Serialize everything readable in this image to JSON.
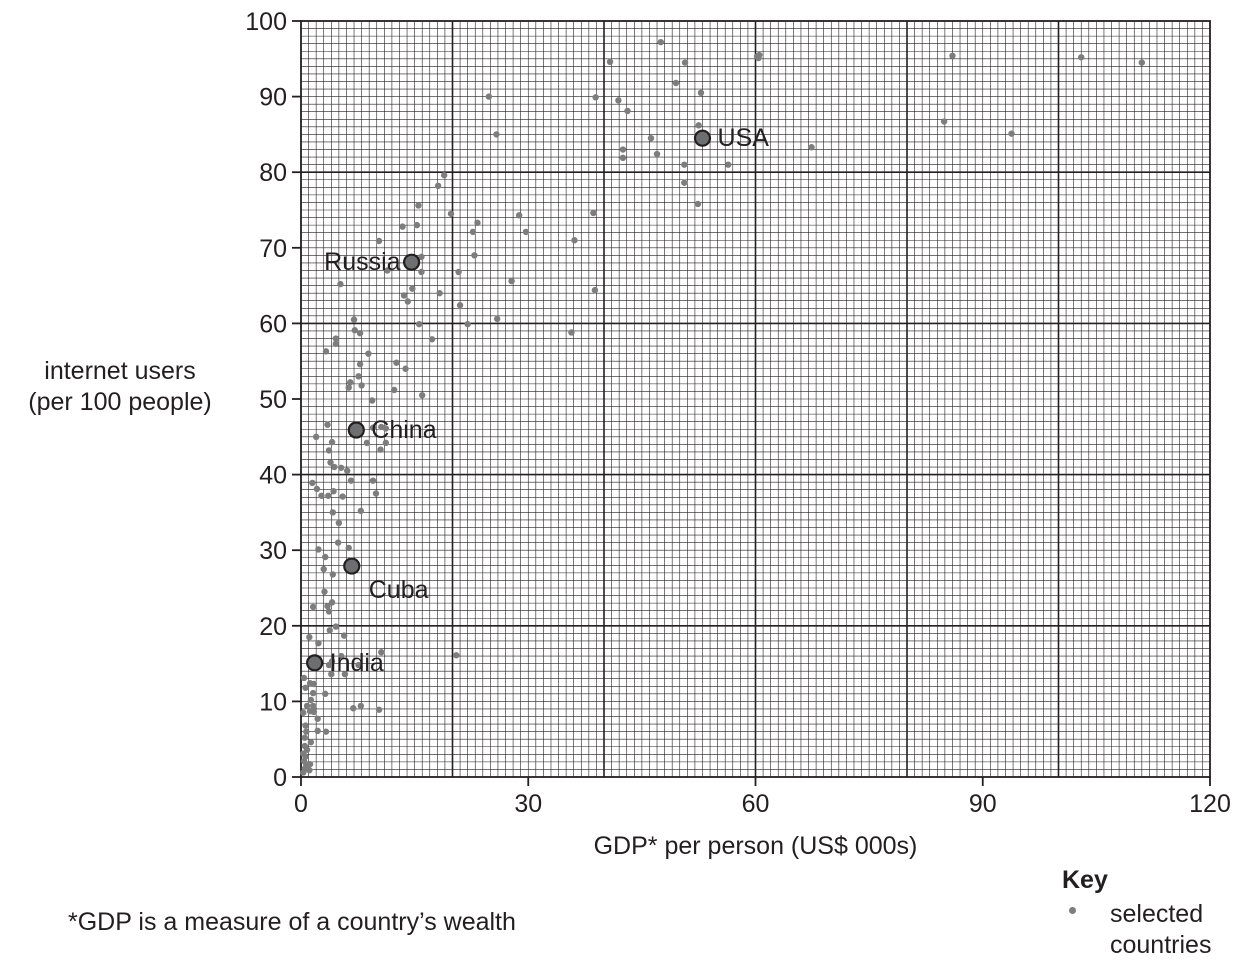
{
  "chart_data": {
    "type": "scatter",
    "xlabel": "GDP* per person (US$ 000s)",
    "ylabel_lines": [
      "internet users",
      "(per 100 people)"
    ],
    "xlim": [
      0,
      120
    ],
    "ylim": [
      0,
      100
    ],
    "xticks": [
      0,
      30,
      60,
      90,
      120
    ],
    "yticks": [
      0,
      10,
      20,
      30,
      40,
      50,
      60,
      70,
      80,
      90,
      100
    ],
    "grid": true,
    "legend_position": "bottom-right",
    "colors": {
      "point": "#7d7d7e",
      "highlight_fill": "#6d6e70",
      "highlight_stroke": "#231f20",
      "grid": "#231f20",
      "text": "#231f20"
    },
    "series": [
      {
        "name": "selected countries",
        "points": [
          [
            47.5,
            97.2
          ],
          [
            40.8,
            94.6
          ],
          [
            50.7,
            94.5
          ],
          [
            60.2,
            95.3
          ],
          [
            60.4,
            95.1
          ],
          [
            60.5,
            95.5
          ],
          [
            86,
            95.4
          ],
          [
            103,
            95.2
          ],
          [
            111,
            94.5
          ],
          [
            49.5,
            91.8
          ],
          [
            52.8,
            90.5
          ],
          [
            38.9,
            89.9
          ],
          [
            24.8,
            90
          ],
          [
            41.9,
            89.5
          ],
          [
            43.1,
            88.1
          ],
          [
            84.9,
            86.7
          ],
          [
            52.5,
            86.2
          ],
          [
            25.8,
            85
          ],
          [
            46.2,
            84.5
          ],
          [
            93.8,
            85.1
          ],
          [
            67.4,
            83.3
          ],
          [
            42.5,
            83
          ],
          [
            47,
            82.4
          ],
          [
            42.5,
            81.9
          ],
          [
            50.6,
            81
          ],
          [
            56.4,
            81
          ],
          [
            50.6,
            78.6
          ],
          [
            18.9,
            79.6
          ],
          [
            18.1,
            78.2
          ],
          [
            52.4,
            75.8
          ],
          [
            15.5,
            75.6
          ],
          [
            38.6,
            74.6
          ],
          [
            19.8,
            74.5
          ],
          [
            28.8,
            74.3
          ],
          [
            23.3,
            73.3
          ],
          [
            13.4,
            72.8
          ],
          [
            15.3,
            73
          ],
          [
            22.7,
            72.1
          ],
          [
            29.7,
            72.1
          ],
          [
            36.1,
            71
          ],
          [
            10.3,
            70.9
          ],
          [
            22.9,
            69
          ],
          [
            15.9,
            68.8
          ],
          [
            11.4,
            67
          ],
          [
            20.8,
            66.8
          ],
          [
            15.9,
            66.8
          ],
          [
            27.8,
            65.6
          ],
          [
            5.2,
            65.2
          ],
          [
            14.7,
            64.6
          ],
          [
            18.3,
            64
          ],
          [
            38.8,
            64.4
          ],
          [
            13.6,
            63.7
          ],
          [
            14.1,
            62.9
          ],
          [
            21,
            62.4
          ],
          [
            7,
            60.5
          ],
          [
            25.9,
            60.6
          ],
          [
            15.6,
            59.9
          ],
          [
            22,
            59.9
          ],
          [
            7.1,
            59.1
          ],
          [
            7.8,
            58.7
          ],
          [
            35.7,
            58.8
          ],
          [
            17.3,
            57.9
          ],
          [
            4.6,
            58
          ],
          [
            4.6,
            57.3
          ],
          [
            3.3,
            56.3
          ],
          [
            12.6,
            54.8
          ],
          [
            8.9,
            56
          ],
          [
            13.8,
            54
          ],
          [
            7.8,
            54.6
          ],
          [
            7.6,
            53
          ],
          [
            6.5,
            52.2
          ],
          [
            6.3,
            51.5
          ],
          [
            8,
            51.8
          ],
          [
            12.3,
            51.2
          ],
          [
            16,
            50.5
          ],
          [
            9.4,
            49.8
          ],
          [
            3.5,
            46.6
          ],
          [
            9.5,
            46.2
          ],
          [
            11.2,
            46.1
          ],
          [
            10.6,
            46.3
          ],
          [
            2,
            45
          ],
          [
            8.7,
            44.2
          ],
          [
            10.5,
            43.3
          ],
          [
            11.2,
            44.2
          ],
          [
            4.1,
            44.3
          ],
          [
            3.7,
            43.2
          ],
          [
            3.9,
            41.6
          ],
          [
            4.4,
            41
          ],
          [
            5.3,
            40.9
          ],
          [
            6.1,
            40.5
          ],
          [
            1.5,
            38.9
          ],
          [
            2.1,
            38.1
          ],
          [
            4.3,
            37.8
          ],
          [
            6.6,
            39.2
          ],
          [
            9.5,
            39.2
          ],
          [
            2.7,
            37.2
          ],
          [
            3.6,
            37.2
          ],
          [
            5.5,
            37.1
          ],
          [
            9.9,
            37.5
          ],
          [
            4.2,
            35
          ],
          [
            7.9,
            35.2
          ],
          [
            5,
            33.6
          ],
          [
            4.9,
            31
          ],
          [
            6.3,
            30.3
          ],
          [
            2.3,
            30.1
          ],
          [
            3.2,
            29.1
          ],
          [
            3,
            27.5
          ],
          [
            4.2,
            26.8
          ],
          [
            3.1,
            24.5
          ],
          [
            4.1,
            23.1
          ],
          [
            3.5,
            22.6
          ],
          [
            1.6,
            22.5
          ],
          [
            3.7,
            21.9
          ],
          [
            4.6,
            19.9
          ],
          [
            3.8,
            19.4
          ],
          [
            5.7,
            18.7
          ],
          [
            1.1,
            18.5
          ],
          [
            2.3,
            17.7
          ],
          [
            20.5,
            16.1
          ],
          [
            5.3,
            16
          ],
          [
            10.6,
            16.5
          ],
          [
            4.1,
            15.3
          ],
          [
            3.7,
            14.8
          ],
          [
            7.6,
            14.8
          ],
          [
            4,
            13.6
          ],
          [
            5.8,
            13.6
          ],
          [
            0.4,
            13.1
          ],
          [
            1.2,
            12.4
          ],
          [
            1.7,
            12.3
          ],
          [
            0.6,
            11.8
          ],
          [
            1.6,
            11.1
          ],
          [
            3.2,
            11
          ],
          [
            1.3,
            10.2
          ],
          [
            1.6,
            9.4
          ],
          [
            0.8,
            9.4
          ],
          [
            1.7,
            8.6
          ],
          [
            1.2,
            8.7
          ],
          [
            0.3,
            8.5
          ],
          [
            6.9,
            9.1
          ],
          [
            7.9,
            9.4
          ],
          [
            10.3,
            8.9
          ],
          [
            2.2,
            7.7
          ],
          [
            0.6,
            6.8
          ],
          [
            0.7,
            6
          ],
          [
            2.2,
            6.1
          ],
          [
            3.3,
            6
          ],
          [
            0.5,
            5.2
          ],
          [
            1.3,
            4.6
          ],
          [
            0.5,
            4.1
          ],
          [
            0.8,
            3.6
          ],
          [
            0.3,
            3.1
          ],
          [
            0.6,
            2.7
          ],
          [
            0.4,
            2.1
          ],
          [
            1.2,
            1.7
          ],
          [
            0.7,
            1.6
          ],
          [
            0.5,
            1.1
          ],
          [
            1.1,
            0.9
          ],
          [
            0.3,
            0.6
          ],
          [
            0.8,
            1.2
          ]
        ]
      }
    ],
    "highlighted": [
      {
        "label": "USA",
        "x": 53.0,
        "y": 84.5,
        "label_pos": "right"
      },
      {
        "label": "Russia",
        "x": 14.6,
        "y": 68.1,
        "label_pos": "left"
      },
      {
        "label": "China",
        "x": 7.3,
        "y": 45.9,
        "label_pos": "right"
      },
      {
        "label": "Cuba",
        "x": 6.7,
        "y": 27.9,
        "label_pos": "below-right"
      },
      {
        "label": "India",
        "x": 1.8,
        "y": 15.1,
        "label_pos": "right"
      }
    ]
  },
  "footnote": "*GDP is a measure of a country’s wealth",
  "key": {
    "title": "Key",
    "entries": [
      {
        "line1": "selected",
        "line2": "countries"
      }
    ]
  }
}
